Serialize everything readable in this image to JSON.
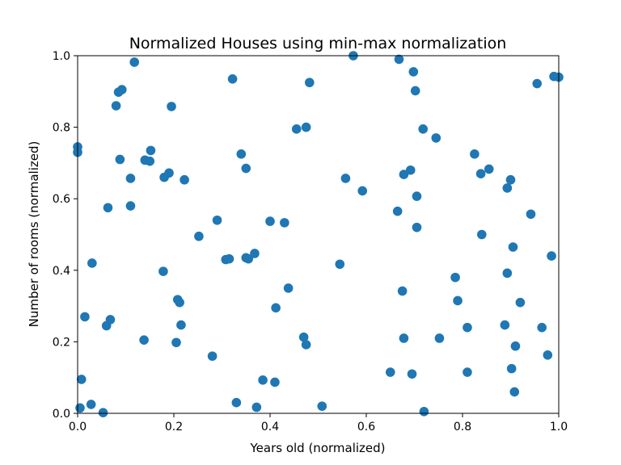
{
  "chart_data": {
    "type": "scatter",
    "title": "Normalized Houses using min-max normalization",
    "xlabel": "Years old (normalized)",
    "ylabel": "Number of rooms (normalized)",
    "xlim": [
      0,
      1
    ],
    "ylim": [
      0,
      1
    ],
    "xticks": [
      "0.0",
      "0.2",
      "0.4",
      "0.6",
      "0.8",
      "1.0"
    ],
    "yticks": [
      "0.0",
      "0.2",
      "0.4",
      "0.6",
      "0.8",
      "1.0"
    ],
    "grid": false,
    "marker_color": "#1f77b4",
    "series": [
      {
        "points": [
          [
            0.0,
            0.745
          ],
          [
            0.0,
            0.73
          ],
          [
            0.008,
            0.095
          ],
          [
            0.005,
            0.015
          ],
          [
            0.015,
            0.27
          ],
          [
            0.03,
            0.42
          ],
          [
            0.028,
            0.025
          ],
          [
            0.053,
            0.002
          ],
          [
            0.063,
            0.575
          ],
          [
            0.06,
            0.245
          ],
          [
            0.068,
            0.262
          ],
          [
            0.08,
            0.86
          ],
          [
            0.085,
            0.898
          ],
          [
            0.092,
            0.905
          ],
          [
            0.088,
            0.71
          ],
          [
            0.11,
            0.657
          ],
          [
            0.11,
            0.58
          ],
          [
            0.118,
            0.982
          ],
          [
            0.14,
            0.708
          ],
          [
            0.15,
            0.705
          ],
          [
            0.152,
            0.735
          ],
          [
            0.138,
            0.205
          ],
          [
            0.18,
            0.66
          ],
          [
            0.19,
            0.672
          ],
          [
            0.195,
            0.858
          ],
          [
            0.178,
            0.397
          ],
          [
            0.208,
            0.318
          ],
          [
            0.212,
            0.31
          ],
          [
            0.215,
            0.247
          ],
          [
            0.205,
            0.198
          ],
          [
            0.222,
            0.653
          ],
          [
            0.252,
            0.495
          ],
          [
            0.28,
            0.16
          ],
          [
            0.29,
            0.54
          ],
          [
            0.308,
            0.43
          ],
          [
            0.315,
            0.432
          ],
          [
            0.322,
            0.935
          ],
          [
            0.33,
            0.03
          ],
          [
            0.34,
            0.725
          ],
          [
            0.35,
            0.685
          ],
          [
            0.35,
            0.435
          ],
          [
            0.355,
            0.432
          ],
          [
            0.368,
            0.447
          ],
          [
            0.372,
            0.017
          ],
          [
            0.385,
            0.093
          ],
          [
            0.4,
            0.537
          ],
          [
            0.41,
            0.087
          ],
          [
            0.412,
            0.295
          ],
          [
            0.43,
            0.533
          ],
          [
            0.438,
            0.35
          ],
          [
            0.455,
            0.795
          ],
          [
            0.47,
            0.213
          ],
          [
            0.475,
            0.192
          ],
          [
            0.475,
            0.8
          ],
          [
            0.482,
            0.925
          ],
          [
            0.508,
            0.02
          ],
          [
            0.545,
            0.417
          ],
          [
            0.557,
            0.657
          ],
          [
            0.573,
            1.0
          ],
          [
            0.592,
            0.622
          ],
          [
            0.65,
            0.115
          ],
          [
            0.665,
            0.565
          ],
          [
            0.668,
            0.99
          ],
          [
            0.675,
            0.342
          ],
          [
            0.678,
            0.21
          ],
          [
            0.678,
            0.668
          ],
          [
            0.692,
            0.68
          ],
          [
            0.695,
            0.11
          ],
          [
            0.698,
            0.955
          ],
          [
            0.702,
            0.902
          ],
          [
            0.705,
            0.607
          ],
          [
            0.705,
            0.52
          ],
          [
            0.718,
            0.795
          ],
          [
            0.72,
            0.005
          ],
          [
            0.745,
            0.77
          ],
          [
            0.752,
            0.21
          ],
          [
            0.785,
            0.38
          ],
          [
            0.79,
            0.315
          ],
          [
            0.81,
            0.24
          ],
          [
            0.81,
            0.115
          ],
          [
            0.825,
            0.725
          ],
          [
            0.838,
            0.67
          ],
          [
            0.84,
            0.5
          ],
          [
            0.855,
            0.683
          ],
          [
            0.888,
            0.247
          ],
          [
            0.893,
            0.63
          ],
          [
            0.893,
            0.392
          ],
          [
            0.9,
            0.653
          ],
          [
            0.902,
            0.125
          ],
          [
            0.905,
            0.465
          ],
          [
            0.908,
            0.06
          ],
          [
            0.91,
            0.188
          ],
          [
            0.92,
            0.31
          ],
          [
            0.942,
            0.557
          ],
          [
            0.955,
            0.922
          ],
          [
            0.965,
            0.24
          ],
          [
            0.977,
            0.163
          ],
          [
            0.985,
            0.44
          ],
          [
            0.99,
            0.942
          ],
          [
            1.0,
            0.94
          ]
        ]
      }
    ]
  }
}
